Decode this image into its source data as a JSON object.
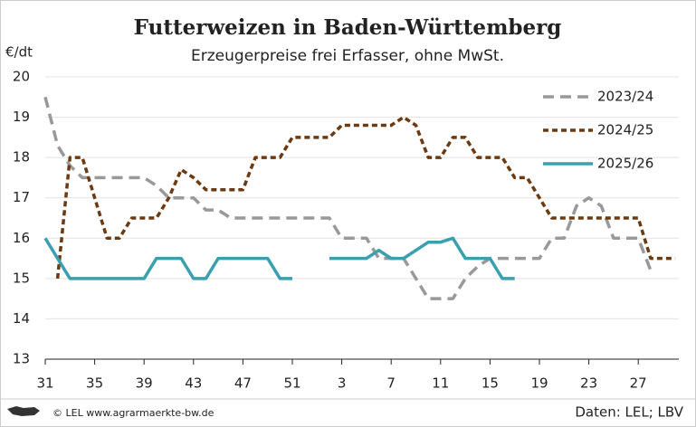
{
  "chart_data": {
    "type": "line",
    "title": "Futterweizen in Baden-Württemberg",
    "subtitle": "Erzeugerpreise frei Erfasser, ohne MwSt.",
    "y_label": "€/dt",
    "source": "Daten: LEL; LBV",
    "copyright": "© LEL www.agrarmaerkte-bw.de",
    "categories": [
      "31",
      null,
      null,
      null,
      "35",
      null,
      null,
      null,
      "39",
      null,
      null,
      null,
      "43",
      null,
      null,
      null,
      "47",
      null,
      null,
      null,
      "51",
      null,
      null,
      null,
      "3",
      null,
      null,
      null,
      "7",
      null,
      null,
      null,
      "11",
      null,
      null,
      null,
      "15",
      null,
      null,
      null,
      "19",
      null,
      null,
      null,
      "23",
      null,
      null,
      null,
      "27",
      null,
      null,
      null
    ],
    "ylim": [
      13,
      20
    ],
    "yticks": [
      13,
      14,
      15,
      16,
      17,
      18,
      19,
      20
    ],
    "grid": true,
    "series": [
      {
        "name": "2023/24",
        "color": "#999999",
        "dash": "dashed",
        "values": [
          19.5,
          18.3,
          17.8,
          17.5,
          17.5,
          17.5,
          17.5,
          17.5,
          17.5,
          17.3,
          17.0,
          17.0,
          17.0,
          16.7,
          16.7,
          16.5,
          16.5,
          16.5,
          16.5,
          16.5,
          16.5,
          16.5,
          16.5,
          16.5,
          16.0,
          16.0,
          16.0,
          15.5,
          15.5,
          15.5,
          15.0,
          14.5,
          14.5,
          14.5,
          15.0,
          15.3,
          15.5,
          15.5,
          15.5,
          15.5,
          15.5,
          16.0,
          16.0,
          16.8,
          17.0,
          16.8,
          16.0,
          16.0,
          16.0,
          15.2,
          null,
          null
        ]
      },
      {
        "name": "2024/25",
        "color": "#6b3a12",
        "dash": "dotted",
        "values": [
          null,
          15.0,
          18.0,
          18.0,
          17.0,
          16.0,
          16.0,
          16.5,
          16.5,
          16.5,
          17.0,
          17.7,
          17.5,
          17.2,
          17.2,
          17.2,
          17.2,
          18.0,
          18.0,
          18.0,
          18.5,
          18.5,
          18.5,
          18.5,
          18.8,
          18.8,
          18.8,
          18.8,
          18.8,
          19.0,
          18.8,
          18.0,
          18.0,
          18.5,
          18.5,
          18.0,
          18.0,
          18.0,
          17.5,
          17.5,
          17.0,
          16.5,
          16.5,
          16.5,
          16.5,
          16.5,
          16.5,
          16.5,
          16.5,
          15.5,
          15.5,
          15.5
        ]
      },
      {
        "name": "2025/26",
        "color": "#3a9fae",
        "dash": "solid",
        "values": [
          16.0,
          15.5,
          15.0,
          15.0,
          15.0,
          15.0,
          15.0,
          15.0,
          15.0,
          15.5,
          15.5,
          15.5,
          15.0,
          15.0,
          15.5,
          15.5,
          15.5,
          15.5,
          15.5,
          15.0,
          15.0,
          null,
          null,
          15.5,
          15.5,
          15.5,
          15.5,
          15.7,
          15.5,
          15.5,
          15.7,
          15.9,
          15.9,
          16.0,
          15.5,
          15.5,
          15.5,
          15.0,
          15.0,
          null,
          null,
          null,
          null,
          null,
          null,
          null,
          null,
          null,
          null,
          null,
          null,
          null
        ]
      }
    ]
  }
}
